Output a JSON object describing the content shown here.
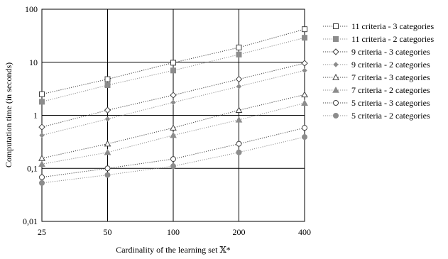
{
  "chart_data": {
    "type": "line",
    "title": "",
    "xlabel": "Cardinality of the learning set 𝕏*",
    "ylabel": "Computation time (in seconds)",
    "x": [
      25,
      50,
      100,
      200,
      400
    ],
    "xticks": [
      "25",
      "50",
      "100",
      "200",
      "400"
    ],
    "yscale": "log",
    "ylim": [
      0.01,
      100
    ],
    "yticks": [
      "0,01",
      "0,1",
      "1",
      "10",
      "100"
    ],
    "grid": true,
    "legend_position": "right",
    "series": [
      {
        "name": "11 criteria - 3 categories",
        "marker": "square-open",
        "color": "#404040",
        "values": [
          2.5,
          4.8,
          9.8,
          19,
          42
        ]
      },
      {
        "name": "11 criteria - 2 categories",
        "marker": "square-filled",
        "color": "#8c8c8c",
        "values": [
          1.8,
          3.7,
          7.0,
          14,
          29
        ]
      },
      {
        "name": "9 criteria - 3 categories",
        "marker": "diamond-open",
        "color": "#404040",
        "values": [
          0.6,
          1.25,
          2.4,
          4.8,
          9.6
        ]
      },
      {
        "name": "9 criteria - 2 categories",
        "marker": "diamond-filled",
        "color": "#8c8c8c",
        "values": [
          0.42,
          0.85,
          1.75,
          3.5,
          7.0
        ]
      },
      {
        "name": "7 criteria - 3 categories",
        "marker": "triangle-open",
        "color": "#404040",
        "values": [
          0.155,
          0.29,
          0.58,
          1.25,
          2.45
        ]
      },
      {
        "name": "7 criteria - 2 categories",
        "marker": "triangle-filled",
        "color": "#8c8c8c",
        "values": [
          0.12,
          0.2,
          0.42,
          0.82,
          1.7
        ]
      },
      {
        "name": "5 criteria - 3 categories",
        "marker": "circle-open",
        "color": "#404040",
        "values": [
          0.068,
          0.1,
          0.15,
          0.29,
          0.58
        ]
      },
      {
        "name": "5 criteria - 2 categories",
        "marker": "circle-filled",
        "color": "#8c8c8c",
        "values": [
          0.053,
          0.075,
          0.11,
          0.2,
          0.39
        ]
      }
    ]
  }
}
